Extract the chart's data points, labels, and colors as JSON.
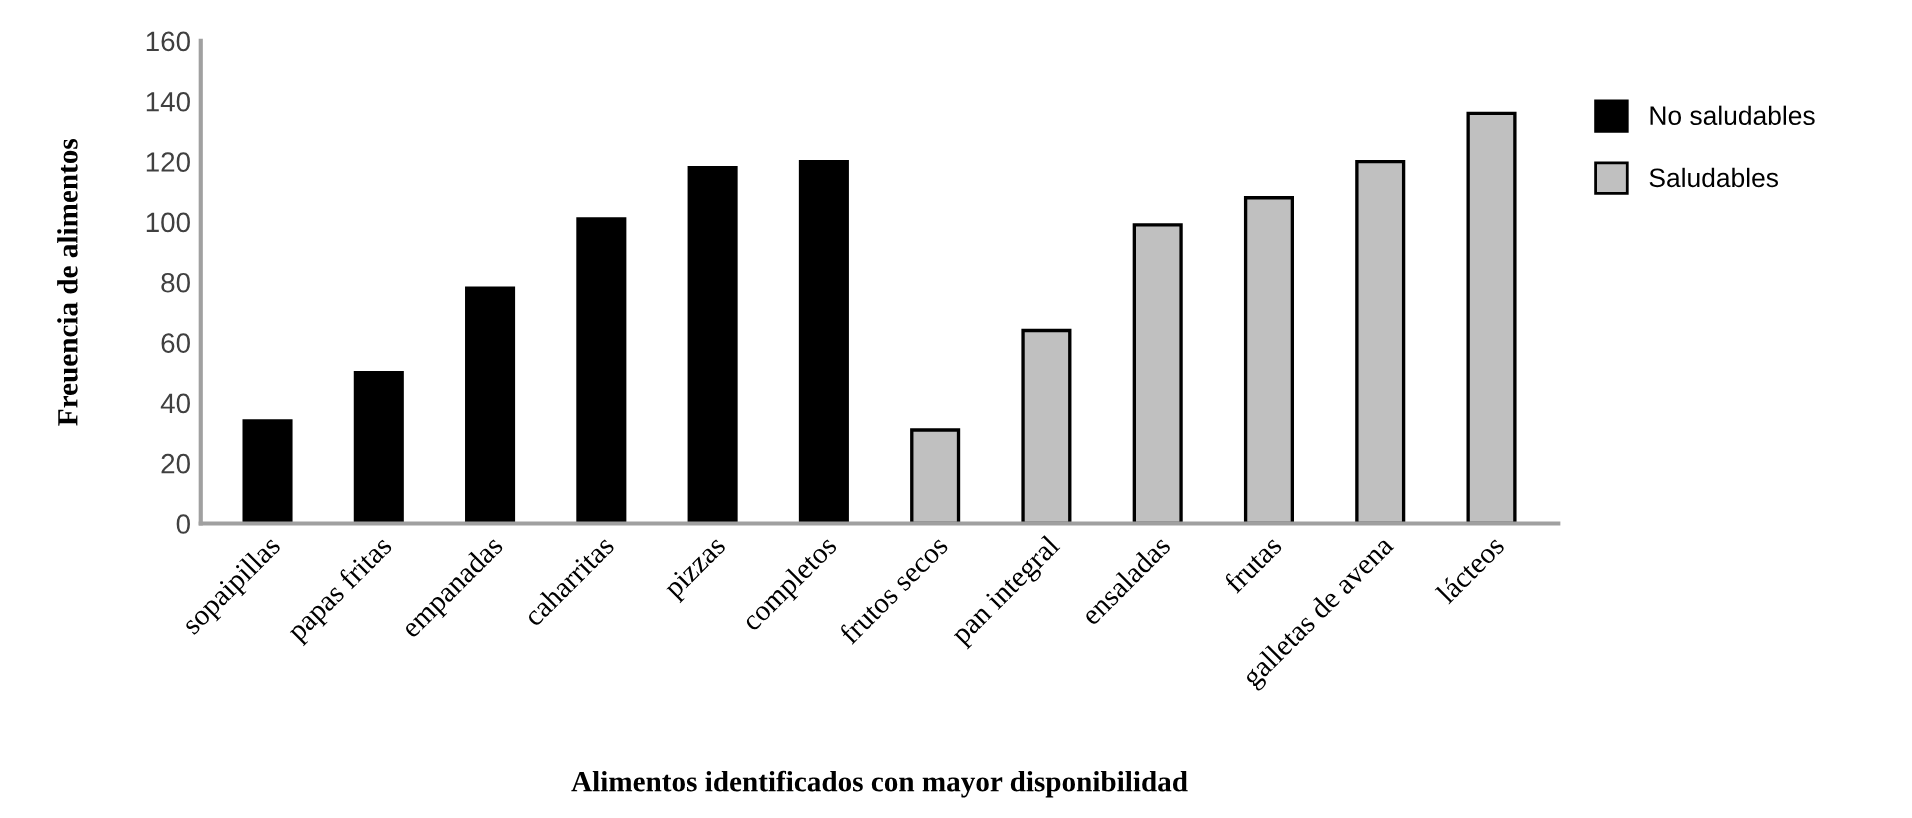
{
  "chart_data": {
    "type": "bar",
    "xlabel": "Alimentos identificados con mayor disponibilidad",
    "ylabel": "Freuencia de alimentos",
    "categories": [
      "sopaipillas",
      "papas fritas",
      "empanadas",
      "caharritas",
      "pizzas",
      "completos",
      "frutos secos",
      "pan integral",
      "ensaladas",
      "frutas",
      "galletas de avena",
      "lácteos"
    ],
    "series": [
      {
        "name": "No saludables",
        "color": "#000000",
        "values": [
          34,
          50,
          78,
          101,
          118,
          120,
          null,
          null,
          null,
          null,
          null,
          null
        ]
      },
      {
        "name": "Saludables",
        "color": "#c0c0c0",
        "values": [
          null,
          null,
          null,
          null,
          null,
          null,
          31,
          64,
          99,
          108,
          120,
          136
        ]
      }
    ],
    "ylim": [
      0,
      160
    ],
    "yticks": [
      0,
      20,
      40,
      60,
      80,
      100,
      120,
      140,
      160
    ],
    "grid": false,
    "legend": "right"
  }
}
